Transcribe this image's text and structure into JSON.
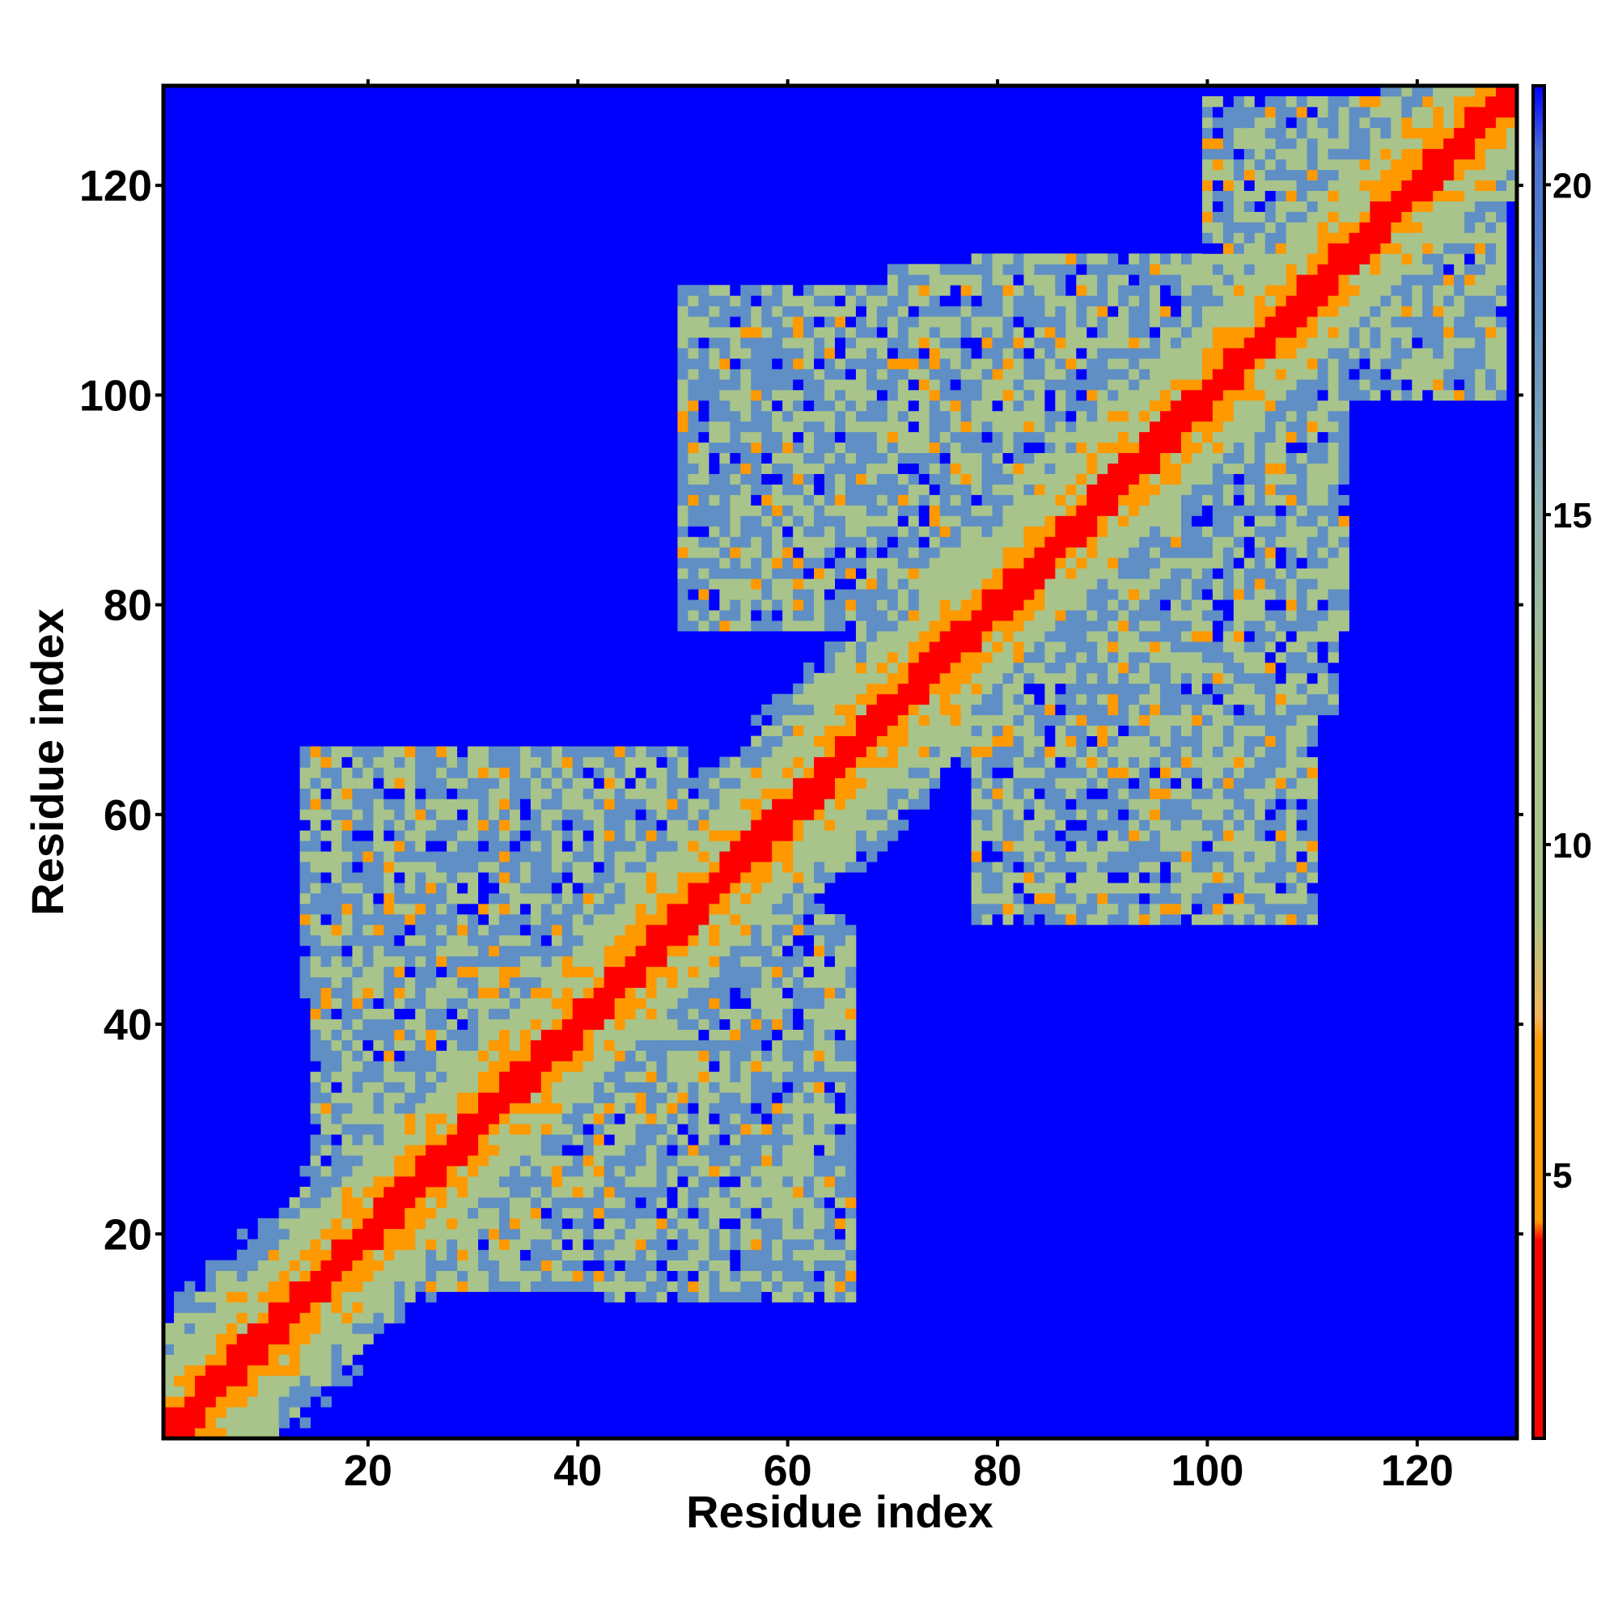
{
  "chart_data": {
    "type": "heatmap",
    "title": "",
    "xlabel": "Residue index",
    "ylabel": "Residue index",
    "xlim": [
      1,
      129
    ],
    "ylim": [
      1,
      129
    ],
    "x_ticks": [
      20,
      40,
      60,
      80,
      100,
      120
    ],
    "y_ticks": [
      20,
      40,
      60,
      80,
      100,
      120
    ],
    "colorbar": {
      "range": [
        1,
        21.5
      ],
      "ticks": [
        5,
        10,
        15,
        20
      ],
      "colors": {
        "red": "#ff0000",
        "orange": "#ff9900",
        "pale_green": "#a8c48a",
        "steel_blue": "#5f8fc4",
        "blue": "#0000ff"
      }
    },
    "description_values": {
      "diagonal_value": 1,
      "background_value": 21.5
    },
    "domains": [
      {
        "x_range": [
          15,
          48
        ],
        "y_range": [
          15,
          65
        ]
      },
      {
        "x_range": [
          43,
          66
        ],
        "y_range": [
          14,
          50
        ]
      },
      {
        "x_range": [
          51,
          75
        ],
        "y_range": [
          78,
          108
        ]
      },
      {
        "x_range": [
          78,
          112
        ],
        "y_range": [
          70,
          113
        ]
      },
      {
        "x_range": [
          78,
          110
        ],
        "y_range": [
          50,
          73
        ]
      },
      {
        "x_range": [
          100,
          128
        ],
        "y_range": [
          100,
          128
        ]
      }
    ]
  }
}
